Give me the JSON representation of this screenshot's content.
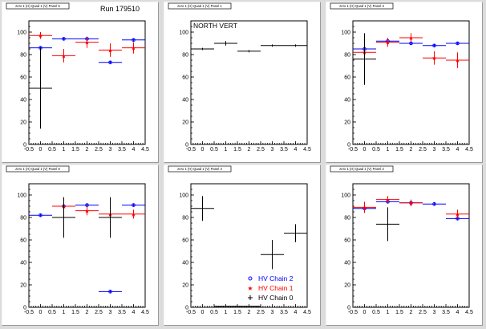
{
  "run_label": "Run 179510",
  "colors": {
    "chain2": "#0000ff",
    "chain1": "#ff0000",
    "chain0": "#000000",
    "canvas_bg": "#dcdcdc",
    "pad_bg": "#ffffff"
  },
  "legend": {
    "items": [
      {
        "label": "HV Chain 2",
        "marker": "circle-icon",
        "color": "#0000ff"
      },
      {
        "label": "HV Chain 1",
        "marker": "star-icon",
        "color": "#ff0000"
      },
      {
        "label": "HV Chain 0",
        "marker": "plus-icon",
        "color": "#000000"
      }
    ]
  },
  "chart_data": [
    {
      "type": "scatter",
      "title": "zero 1 (H) Quad 1 (V) Panel 5",
      "xlim": [
        -0.5,
        4.5
      ],
      "ylim": [
        0,
        110
      ],
      "xticks": [
        "-0.5",
        "0",
        "0.5",
        "1",
        "1.5",
        "2",
        "2.5",
        "3",
        "3.5",
        "4",
        "4.5"
      ],
      "yticks": [
        "0",
        "20",
        "40",
        "60",
        "80",
        "100"
      ],
      "annotation": "Run 179510",
      "series": [
        {
          "name": "HV Chain 2",
          "points": [
            {
              "x": 0,
              "y": 86,
              "yerr": 1
            },
            {
              "x": 1,
              "y": 94,
              "yerr": 1
            },
            {
              "x": 2,
              "y": 94,
              "yerr": 1
            },
            {
              "x": 3,
              "y": 73,
              "yerr": 1
            },
            {
              "x": 4,
              "y": 93,
              "yerr": 1
            }
          ]
        },
        {
          "name": "HV Chain 1",
          "points": [
            {
              "x": 0,
              "y": 97,
              "yerr": 3
            },
            {
              "x": 1,
              "y": 79,
              "yerr": 6
            },
            {
              "x": 2,
              "y": 91,
              "yerr": 5
            },
            {
              "x": 3,
              "y": 84,
              "yerr": 6
            },
            {
              "x": 4,
              "y": 86,
              "yerr": 5
            }
          ]
        },
        {
          "name": "HV Chain 0",
          "points": [
            {
              "x": 0,
              "y": 50,
              "yerr": 36
            }
          ]
        }
      ]
    },
    {
      "type": "scatter",
      "title": "zero 1 (H) Quad 1 (V) Panel 1",
      "xlim": [
        -0.5,
        4.5
      ],
      "ylim": [
        0,
        110
      ],
      "xticks": [
        "-0.5",
        "0",
        "0.5",
        "1",
        "1.5",
        "2",
        "2.5",
        "3",
        "3.5",
        "4",
        "4.5"
      ],
      "yticks": [
        "0",
        "20",
        "40",
        "60",
        "80",
        "100"
      ],
      "annotation": "NORTH VERT",
      "series": [
        {
          "name": "HV Chain 0",
          "points": [
            {
              "x": 0,
              "y": 85,
              "yerr": 1
            },
            {
              "x": 1,
              "y": 90,
              "yerr": 2
            },
            {
              "x": 2,
              "y": 83,
              "yerr": 1
            },
            {
              "x": 3,
              "y": 88,
              "yerr": 1
            },
            {
              "x": 4,
              "y": 88,
              "yerr": 1
            }
          ]
        }
      ]
    },
    {
      "type": "scatter",
      "title": "zero 1 (H) Quad 1 (V) Panel 3",
      "xlim": [
        -0.5,
        4.5
      ],
      "ylim": [
        0,
        110
      ],
      "xticks": [
        "-0.5",
        "0",
        "0.5",
        "1",
        "1.5",
        "2",
        "2.5",
        "3",
        "3.5",
        "4",
        "4.5"
      ],
      "yticks": [
        "0",
        "20",
        "40",
        "60",
        "80",
        "100"
      ],
      "annotation": "",
      "series": [
        {
          "name": "HV Chain 2",
          "points": [
            {
              "x": 0,
              "y": 85,
              "yerr": 1
            },
            {
              "x": 1,
              "y": 92,
              "yerr": 1
            },
            {
              "x": 2,
              "y": 90,
              "yerr": 1
            },
            {
              "x": 3,
              "y": 88,
              "yerr": 1
            },
            {
              "x": 4,
              "y": 90,
              "yerr": 1
            }
          ]
        },
        {
          "name": "HV Chain 1",
          "points": [
            {
              "x": 0,
              "y": 82,
              "yerr": 6
            },
            {
              "x": 1,
              "y": 91,
              "yerr": 4
            },
            {
              "x": 2,
              "y": 95,
              "yerr": 4
            },
            {
              "x": 3,
              "y": 77,
              "yerr": 6
            },
            {
              "x": 4,
              "y": 75,
              "yerr": 7
            }
          ]
        },
        {
          "name": "HV Chain 0",
          "points": [
            {
              "x": 0,
              "y": 76,
              "yerr": 23
            }
          ]
        }
      ]
    },
    {
      "type": "scatter",
      "title": "zero 1 (H) Quad 1 (V) Panel 6",
      "xlim": [
        -0.5,
        4.5
      ],
      "ylim": [
        0,
        110
      ],
      "xticks": [
        "-0.5",
        "0",
        "0.5",
        "1",
        "1.5",
        "2",
        "2.5",
        "3",
        "3.5",
        "4",
        "4.5"
      ],
      "yticks": [
        "0",
        "20",
        "40",
        "60",
        "80",
        "100"
      ],
      "annotation": "",
      "series": [
        {
          "name": "HV Chain 2",
          "points": [
            {
              "x": 0,
              "y": 82,
              "yerr": 1
            },
            {
              "x": 1,
              "y": 90,
              "yerr": 1
            },
            {
              "x": 2,
              "y": 91,
              "yerr": 1
            },
            {
              "x": 3,
              "y": 14,
              "yerr": 1
            },
            {
              "x": 4,
              "y": 91,
              "yerr": 1
            }
          ]
        },
        {
          "name": "HV Chain 1",
          "points": [
            {
              "x": 1,
              "y": 90,
              "yerr": 3
            },
            {
              "x": 2,
              "y": 86,
              "yerr": 4
            },
            {
              "x": 3,
              "y": 83,
              "yerr": 5
            },
            {
              "x": 4,
              "y": 83,
              "yerr": 4
            }
          ]
        },
        {
          "name": "HV Chain 0",
          "points": [
            {
              "x": 1,
              "y": 80,
              "yerr": 18
            },
            {
              "x": 3,
              "y": 80,
              "yerr": 18
            }
          ]
        }
      ]
    },
    {
      "type": "scatter",
      "title": "zero 1 (H) Quad 1 (V) Panel 4",
      "xlim": [
        -0.5,
        4.5
      ],
      "ylim": [
        0,
        110
      ],
      "xticks": [
        "-0.5",
        "0",
        "0.5",
        "1",
        "1.5",
        "2",
        "2.5",
        "3",
        "3.5",
        "4",
        "4.5"
      ],
      "yticks": [
        "0",
        "20",
        "40",
        "60",
        "80",
        "100"
      ],
      "annotation": "",
      "series": [
        {
          "name": "HV Chain 0",
          "points": [
            {
              "x": 0,
              "y": 88,
              "yerr": 11
            },
            {
              "x": 1,
              "y": 1,
              "yerr": 0
            },
            {
              "x": 2,
              "y": 1,
              "yerr": 0
            },
            {
              "x": 3,
              "y": 47,
              "yerr": 13
            },
            {
              "x": 4,
              "y": 66,
              "yerr": 8
            }
          ]
        }
      ]
    },
    {
      "type": "scatter",
      "title": "zero 1 (H) Quad 1 (V) Panel 2",
      "xlim": [
        -0.5,
        4.5
      ],
      "ylim": [
        0,
        110
      ],
      "xticks": [
        "-0.5",
        "0",
        "0.5",
        "1",
        "1.5",
        "2",
        "2.5",
        "3",
        "3.5",
        "4",
        "4.5"
      ],
      "yticks": [
        "0",
        "20",
        "40",
        "60",
        "80",
        "100"
      ],
      "annotation": "",
      "series": [
        {
          "name": "HV Chain 2",
          "points": [
            {
              "x": 0,
              "y": 88,
              "yerr": 1
            },
            {
              "x": 1,
              "y": 94,
              "yerr": 1
            },
            {
              "x": 2,
              "y": 93,
              "yerr": 1
            },
            {
              "x": 3,
              "y": 92,
              "yerr": 1
            },
            {
              "x": 4,
              "y": 79,
              "yerr": 1
            }
          ]
        },
        {
          "name": "HV Chain 1",
          "points": [
            {
              "x": 0,
              "y": 89,
              "yerr": 5
            },
            {
              "x": 1,
              "y": 96,
              "yerr": 3
            },
            {
              "x": 2,
              "y": 93,
              "yerr": 3
            },
            {
              "x": 4,
              "y": 83,
              "yerr": 4
            }
          ]
        },
        {
          "name": "HV Chain 0",
          "points": [
            {
              "x": 1,
              "y": 74,
              "yerr": 15
            }
          ]
        }
      ]
    }
  ]
}
